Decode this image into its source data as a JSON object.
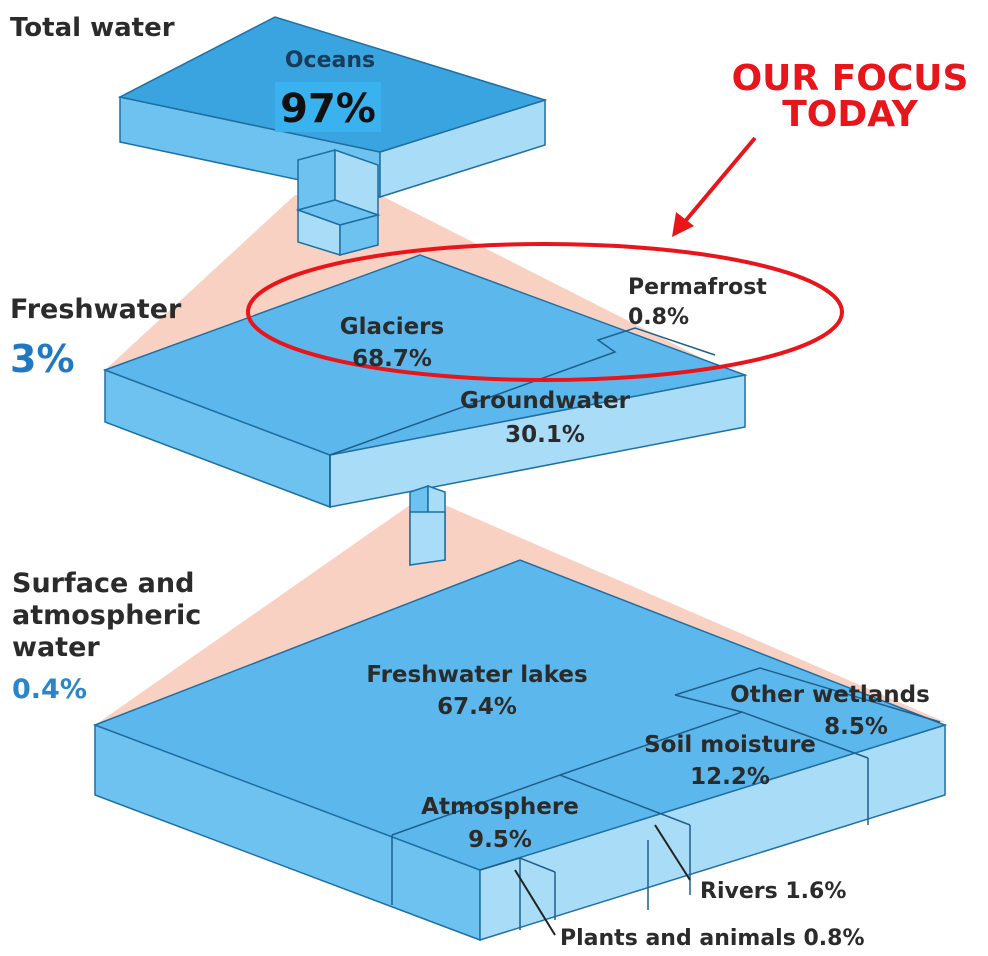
{
  "levels": [
    {
      "title": [
        "Total water"
      ],
      "parts": [
        {
          "label": "Oceans",
          "value": "97%"
        }
      ]
    },
    {
      "title": [
        "Freshwater"
      ],
      "share": "3%",
      "parts": [
        {
          "label": "Glaciers",
          "value": "68.7%"
        },
        {
          "label": "Permafrost",
          "value": "0.8%"
        },
        {
          "label": "Groundwater",
          "value": "30.1%"
        }
      ]
    },
    {
      "title": [
        "Surface and",
        "atmospheric",
        "water"
      ],
      "share": "0.4%",
      "parts": [
        {
          "label": "Freshwater lakes",
          "value": "67.4%"
        },
        {
          "label": "Other wetlands",
          "value": "8.5%"
        },
        {
          "label": "Soil moisture",
          "value": "12.2%"
        },
        {
          "label": "Atmosphere",
          "value": "9.5%"
        },
        {
          "label": "Rivers",
          "value": "1.6%"
        },
        {
          "label": "Plants and animals",
          "value": "0.8%"
        }
      ]
    }
  ],
  "annotation": [
    "OUR FOCUS",
    "TODAY"
  ]
}
